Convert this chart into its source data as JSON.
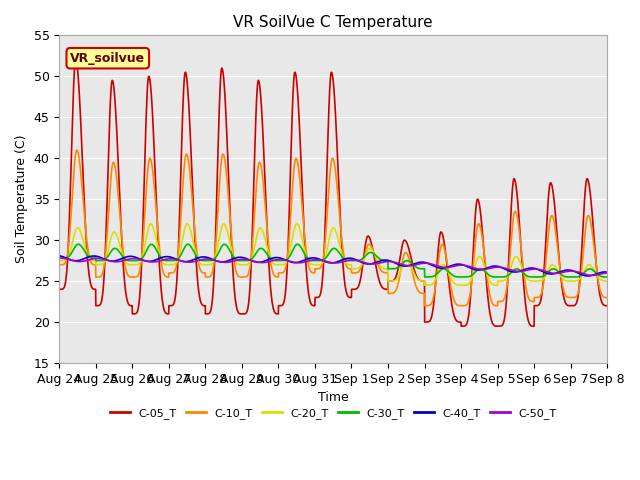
{
  "title": "VR SoilVue C Temperature",
  "ylabel": "Soil Temperature (C)",
  "xlabel": "Time",
  "ylim": [
    15,
    55
  ],
  "xlim": [
    0,
    15
  ],
  "bg_color": "#e8e8e8",
  "fig_color": "#ffffff",
  "legend_label": "VR_soilvue",
  "xtick_labels": [
    "Aug 24",
    "Aug 25",
    "Aug 26",
    "Aug 27",
    "Aug 28",
    "Aug 29",
    "Aug 30",
    "Aug 31",
    "Sep 1",
    "Sep 2",
    "Sep 3",
    "Sep 4",
    "Sep 5",
    "Sep 6",
    "Sep 7",
    "Sep 8"
  ],
  "ytick_vals": [
    15,
    20,
    25,
    30,
    35,
    40,
    45,
    50,
    55
  ],
  "series_names": [
    "C-05_T",
    "C-10_T",
    "C-20_T",
    "C-30_T",
    "C-40_T",
    "C-50_T"
  ],
  "series_colors": [
    "#cc0000",
    "#ff8800",
    "#dddd00",
    "#00bb00",
    "#0000cc",
    "#aa00cc"
  ],
  "series_lw": [
    1.2,
    1.2,
    1.2,
    1.2,
    1.2,
    1.2
  ],
  "c05_peaks": [
    52,
    49.5,
    50,
    50.5,
    51,
    49.5,
    50.5,
    50.5,
    31,
    30,
    31,
    35,
    37.5,
    37
  ],
  "c05_mins": [
    24,
    22,
    21,
    22,
    21,
    21,
    22,
    23,
    24,
    25,
    20,
    19.5,
    19.5,
    22
  ],
  "c10_peaks": [
    41,
    39.5,
    40,
    40,
    40.5,
    39.5,
    40,
    40,
    29,
    28,
    30,
    32,
    33,
    33
  ],
  "c10_mins": [
    26.5,
    25.5,
    25.5,
    26,
    25.5,
    25.5,
    26,
    26.5,
    25.5,
    24,
    22,
    22,
    22.5,
    23
  ],
  "c20_base": 28.0,
  "c30_base": 28.5,
  "c40_base": 27.8,
  "c50_base": 27.8
}
